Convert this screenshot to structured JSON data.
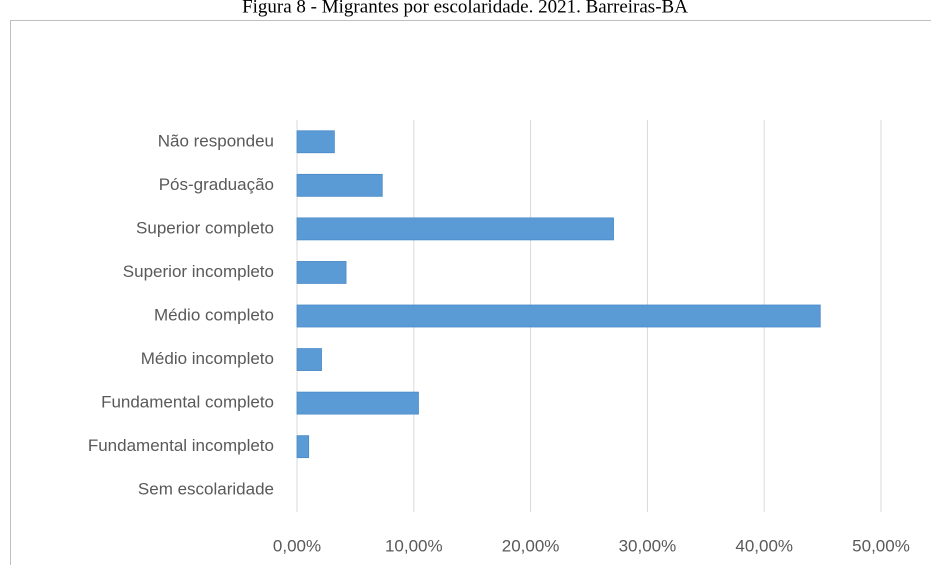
{
  "chart_data": {
    "type": "bar",
    "orientation": "horizontal",
    "title": "Figura 8 - Migrantes por escolaridade. 2021. Barreiras-BA",
    "categories": [
      "Não respondeu",
      "Pós-graduação",
      "Superior completo",
      "Superior incompleto",
      "Médio completo",
      "Médio incompleto",
      "Fundamental completo",
      "Fundamental incompleto",
      "Sem escolaridade"
    ],
    "values": [
      3.2,
      7.3,
      27.1,
      4.2,
      44.8,
      2.1,
      10.4,
      1.0,
      0
    ],
    "color": "#5b9bd5",
    "xlim": [
      0,
      50
    ],
    "xticks": [
      {
        "value": 0,
        "label": "0,00%"
      },
      {
        "value": 10,
        "label": "10,00%"
      },
      {
        "value": 20,
        "label": "20,00%"
      },
      {
        "value": 30,
        "label": "30,00%"
      },
      {
        "value": 40,
        "label": "40,00%"
      },
      {
        "value": 50,
        "label": "50,00%"
      }
    ],
    "grid": true
  }
}
